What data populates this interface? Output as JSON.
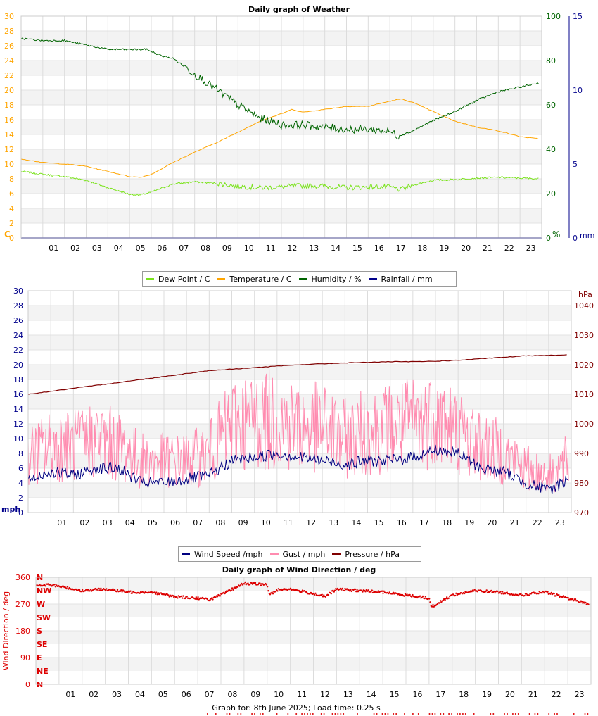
{
  "footer": "Graph for: 8th June 2025; Load time: 0.25 s",
  "chart_data": [
    {
      "type": "line",
      "title": "Daily graph of Weather",
      "x_ticks": [
        "01",
        "02",
        "03",
        "04",
        "05",
        "06",
        "07",
        "08",
        "09",
        "10",
        "11",
        "12",
        "13",
        "14",
        "15",
        "16",
        "17",
        "18",
        "19",
        "20",
        "21",
        "22",
        "23"
      ],
      "x_range": [
        0,
        24
      ],
      "axes": {
        "left": {
          "label": "C",
          "color": "#ffa500",
          "range": [
            0,
            30
          ],
          "ticks": [
            0,
            2,
            4,
            6,
            8,
            10,
            12,
            14,
            16,
            18,
            20,
            22,
            24,
            26,
            28,
            30
          ]
        },
        "right1": {
          "label": "%",
          "color": "#006400",
          "range": [
            0,
            100
          ],
          "ticks": [
            0,
            20,
            40,
            60,
            80,
            100
          ]
        },
        "right2": {
          "label": "mm",
          "color": "#00008b",
          "range": [
            0,
            15
          ],
          "ticks": [
            0,
            5,
            10,
            15
          ]
        }
      },
      "series": [
        {
          "name": "Dew Point / C",
          "color": "#7ae31b",
          "axis": "left",
          "x": [
            0,
            1,
            2,
            3,
            4,
            5,
            5.5,
            6,
            7,
            8,
            9,
            10,
            11,
            12,
            13,
            14,
            15,
            16,
            17,
            17.5,
            18,
            19,
            20,
            21,
            22,
            23,
            23.9
          ],
          "values": [
            9.0,
            8.6,
            8.3,
            7.8,
            6.8,
            5.9,
            5.8,
            6.2,
            7.3,
            7.6,
            7.4,
            7.0,
            6.8,
            6.9,
            7.1,
            7.0,
            6.8,
            6.9,
            6.9,
            6.5,
            7.1,
            7.8,
            7.9,
            8.1,
            8.2,
            8.1,
            8.0
          ]
        },
        {
          "name": "Temperature / C",
          "color": "#ffa500",
          "axis": "left",
          "x": [
            0,
            1,
            2,
            3,
            4,
            5,
            5.5,
            6,
            7,
            8,
            9,
            10,
            11,
            12,
            12.5,
            13,
            14,
            15,
            16,
            17,
            17.5,
            18,
            19,
            20,
            21,
            22,
            23,
            23.9
          ],
          "values": [
            10.7,
            10.2,
            10.0,
            9.7,
            9.0,
            8.3,
            8.2,
            8.6,
            10.2,
            11.6,
            12.9,
            14.3,
            15.8,
            16.8,
            17.4,
            17.0,
            17.4,
            17.8,
            17.8,
            18.5,
            18.8,
            18.4,
            17.1,
            15.8,
            15.0,
            14.5,
            13.7,
            13.4
          ]
        },
        {
          "name": "Humidity / %",
          "color": "#006400",
          "axis": "right1",
          "x": [
            0,
            1,
            2,
            3,
            4,
            5,
            5.8,
            6.5,
            7,
            8,
            9,
            10,
            11,
            11.8,
            12,
            13,
            14,
            15,
            16,
            17,
            17.4,
            18,
            19,
            20,
            21,
            22,
            23,
            23.9
          ],
          "values": [
            90,
            89,
            89,
            87,
            85,
            85,
            85,
            82,
            81,
            74,
            67,
            60,
            54,
            52,
            51,
            51,
            50,
            49,
            49,
            48,
            46,
            48,
            53,
            57,
            62,
            66,
            68,
            70
          ]
        },
        {
          "name": "Rainfall / mm",
          "color": "#00008b",
          "axis": "right2",
          "x": [
            0,
            23.9
          ],
          "values": [
            0,
            0
          ]
        }
      ],
      "grid": true,
      "legend_position": "bottom"
    },
    {
      "type": "line",
      "title": "",
      "x_ticks": [
        "01",
        "02",
        "03",
        "04",
        "05",
        "06",
        "07",
        "08",
        "09",
        "10",
        "11",
        "12",
        "13",
        "14",
        "15",
        "16",
        "17",
        "18",
        "19",
        "20",
        "21",
        "22",
        "23"
      ],
      "x_range": [
        0,
        24
      ],
      "axes": {
        "left": {
          "label": "mph",
          "color": "#00008b",
          "range": [
            0,
            30
          ],
          "ticks": [
            0,
            2,
            4,
            6,
            8,
            10,
            12,
            14,
            16,
            18,
            20,
            22,
            24,
            26,
            28,
            30
          ]
        },
        "right": {
          "label": "hPa",
          "color": "#800000",
          "range": [
            970,
            1045
          ],
          "ticks": [
            970,
            980,
            990,
            1000,
            1010,
            1020,
            1030,
            1040
          ]
        }
      },
      "series": [
        {
          "name": "Wind Speed /mph",
          "color": "#000080",
          "axis": "left",
          "x": [
            0,
            1,
            2,
            3,
            4,
            5,
            6,
            7,
            8,
            9,
            10,
            11,
            12,
            13,
            14,
            15,
            16,
            17,
            18,
            19,
            20,
            21,
            22,
            23,
            23.9
          ],
          "values": [
            4.5,
            5.5,
            5.0,
            6.0,
            6.0,
            4.0,
            4.0,
            4.5,
            5.0,
            7.0,
            7.5,
            8.0,
            7.5,
            7.0,
            6.5,
            7.0,
            7.0,
            7.5,
            8.5,
            8.0,
            6.0,
            5.5,
            4.0,
            3.0,
            4.5
          ]
        },
        {
          "name": "Gust / mph",
          "color": "#ff8cb0",
          "axis": "left",
          "x": [
            0,
            1,
            2,
            3,
            4,
            5,
            6,
            7,
            8,
            9,
            10,
            11,
            12,
            13,
            14,
            15,
            16,
            17,
            18,
            19,
            20,
            21,
            22,
            23,
            23.9
          ],
          "values": [
            7.5,
            9,
            9,
            10,
            9,
            7,
            7,
            7,
            8,
            12,
            12.5,
            12.5,
            11.5,
            11.5,
            10,
            11,
            11.5,
            12,
            13,
            11,
            9,
            8,
            6,
            5,
            7
          ]
        },
        {
          "name": "Pressure / hPa",
          "color": "#800000",
          "axis": "right",
          "x": [
            0,
            1,
            2,
            3,
            4,
            5,
            6,
            7,
            8,
            9,
            10,
            11,
            12,
            13,
            14,
            15,
            16,
            17,
            18,
            19,
            20,
            21,
            22,
            23,
            23.9
          ],
          "values": [
            1010.0,
            1011.0,
            1012.0,
            1013.0,
            1014.0,
            1015.0,
            1016.0,
            1017.0,
            1018.0,
            1018.5,
            1019.0,
            1019.5,
            1020.0,
            1020.3,
            1020.6,
            1020.8,
            1021.0,
            1021.0,
            1021.2,
            1021.5,
            1022.0,
            1022.5,
            1023.0,
            1023.2,
            1023.3
          ]
        }
      ],
      "grid": true,
      "legend_position": "bottom"
    },
    {
      "type": "scatter",
      "title": "Daily graph of Wind Direction / deg",
      "ylabel": "Wind Direction / deg",
      "x_ticks": [
        "01",
        "02",
        "03",
        "04",
        "05",
        "06",
        "07",
        "08",
        "09",
        "10",
        "11",
        "12",
        "13",
        "14",
        "15",
        "16",
        "17",
        "18",
        "19",
        "20",
        "21",
        "22",
        "23"
      ],
      "x_range": [
        0,
        24
      ],
      "y_range": [
        0,
        360
      ],
      "y_ticks": [
        0,
        90,
        180,
        270,
        360
      ],
      "compass_labels": [
        "N",
        "NE",
        "E",
        "SE",
        "S",
        "SW",
        "W",
        "NW",
        "N"
      ],
      "series": [
        {
          "name": "Wind Direction / deg",
          "color": "#dd0000",
          "x": [
            0,
            0.5,
            1,
            2,
            3,
            4,
            5,
            6,
            7,
            7.5,
            8,
            9,
            10,
            10.1,
            10.5,
            11,
            12,
            12.5,
            13,
            14,
            15,
            16,
            17,
            17.1,
            18,
            19,
            20,
            21,
            22,
            23,
            23.9
          ],
          "values": [
            330,
            335,
            330,
            315,
            320,
            310,
            310,
            295,
            290,
            285,
            300,
            340,
            335,
            300,
            320,
            320,
            305,
            295,
            320,
            315,
            310,
            300,
            290,
            260,
            300,
            315,
            310,
            300,
            310,
            290,
            270
          ]
        }
      ],
      "grid": true
    }
  ]
}
